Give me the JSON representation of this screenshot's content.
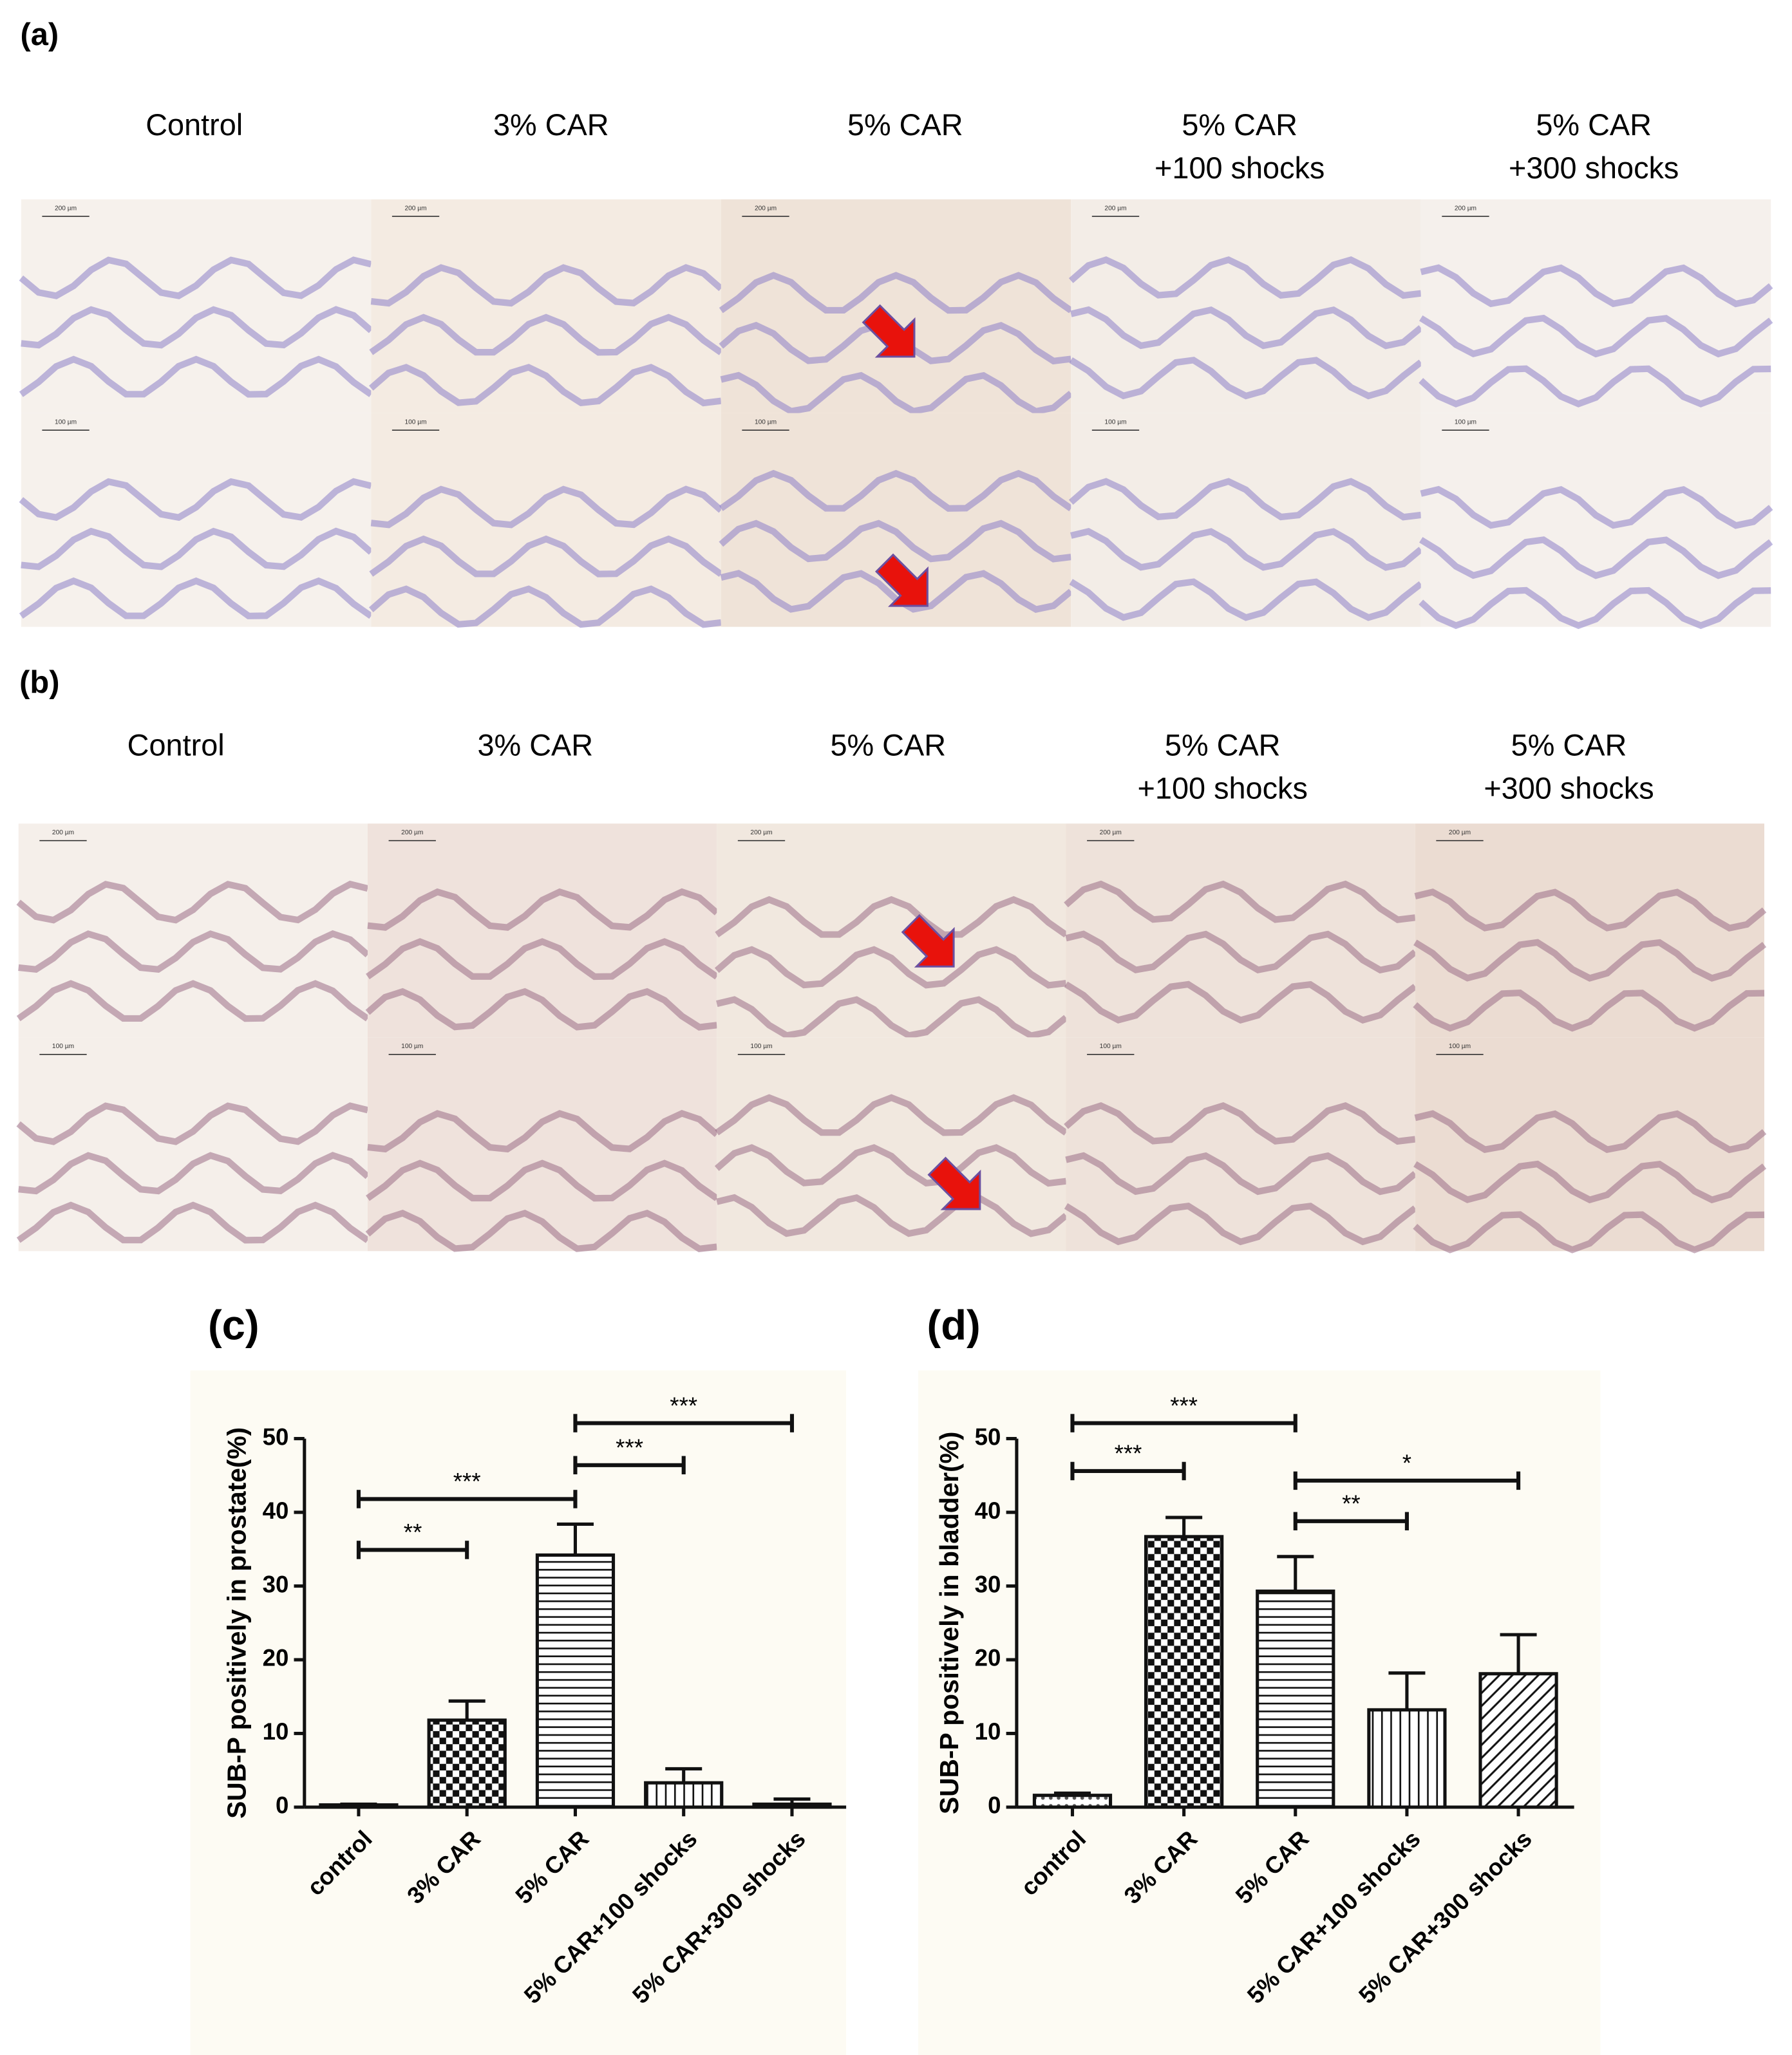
{
  "panels": [
    {
      "label": "(a)",
      "columns": [
        [
          "Control"
        ],
        [
          "3% CAR"
        ],
        [
          "5% CAR"
        ],
        [
          "5% CAR",
          "+100 shocks"
        ],
        [
          "5% CAR",
          "+300 shocks"
        ]
      ]
    },
    {
      "label": "(b)",
      "columns": [
        [
          "Control"
        ],
        [
          "3% CAR"
        ],
        [
          "5% CAR"
        ],
        [
          "5% CAR",
          "+100 shocks"
        ],
        [
          "5% CAR",
          "+300 shocks"
        ]
      ]
    }
  ],
  "scale_bars": [
    "200 µm",
    "100 µm"
  ],
  "chart_data": [
    {
      "type": "bar",
      "label": "(c)",
      "y_label": "SUB-P positively in prostate(%)",
      "categories": [
        "control",
        "3% CAR",
        "5% CAR",
        "5% CAR+100 shocks",
        "5% CAR+300 shocks"
      ],
      "values": [
        0.3,
        11.8,
        34.2,
        3.3,
        0.4
      ],
      "errors": [
        0.1,
        2.6,
        4.2,
        1.9,
        0.7
      ],
      "patterns": [
        "dots",
        "checker",
        "hlines",
        "vlines",
        "diagonal"
      ],
      "ylim": [
        0,
        50
      ],
      "yticks": [
        0,
        10,
        20,
        30,
        40,
        50
      ],
      "annotations": [
        {
          "from": 0,
          "to": 1,
          "y": 34.9,
          "label": "**"
        },
        {
          "from": 0,
          "to": 2,
          "y": 41.8,
          "label": "***"
        },
        {
          "from": 2,
          "to": 3,
          "y": 46.4,
          "label": "***"
        },
        {
          "from": 2,
          "to": 4,
          "y": 52.1,
          "label": "***"
        }
      ]
    },
    {
      "type": "bar",
      "label": "(d)",
      "y_label": "SUB-P positively in bladder(%)",
      "categories": [
        "control",
        "3% CAR",
        "5% CAR",
        "5% CAR+100 shocks",
        "5% CAR+300 shocks"
      ],
      "values": [
        1.6,
        36.7,
        29.3,
        13.2,
        18.1
      ],
      "errors": [
        0.3,
        2.6,
        4.7,
        5.0,
        5.3
      ],
      "patterns": [
        "dots",
        "checker",
        "hlines",
        "vlines",
        "diagonal"
      ],
      "ylim": [
        0,
        50
      ],
      "yticks": [
        0,
        10,
        20,
        30,
        40,
        50
      ],
      "annotations": [
        {
          "from": 0,
          "to": 1,
          "y": 45.6,
          "label": "***"
        },
        {
          "from": 0,
          "to": 2,
          "y": 52.1,
          "label": "***"
        },
        {
          "from": 2,
          "to": 3,
          "y": 38.8,
          "label": "**"
        },
        {
          "from": 2,
          "to": 4,
          "y": 44.3,
          "label": "*"
        }
      ]
    }
  ]
}
